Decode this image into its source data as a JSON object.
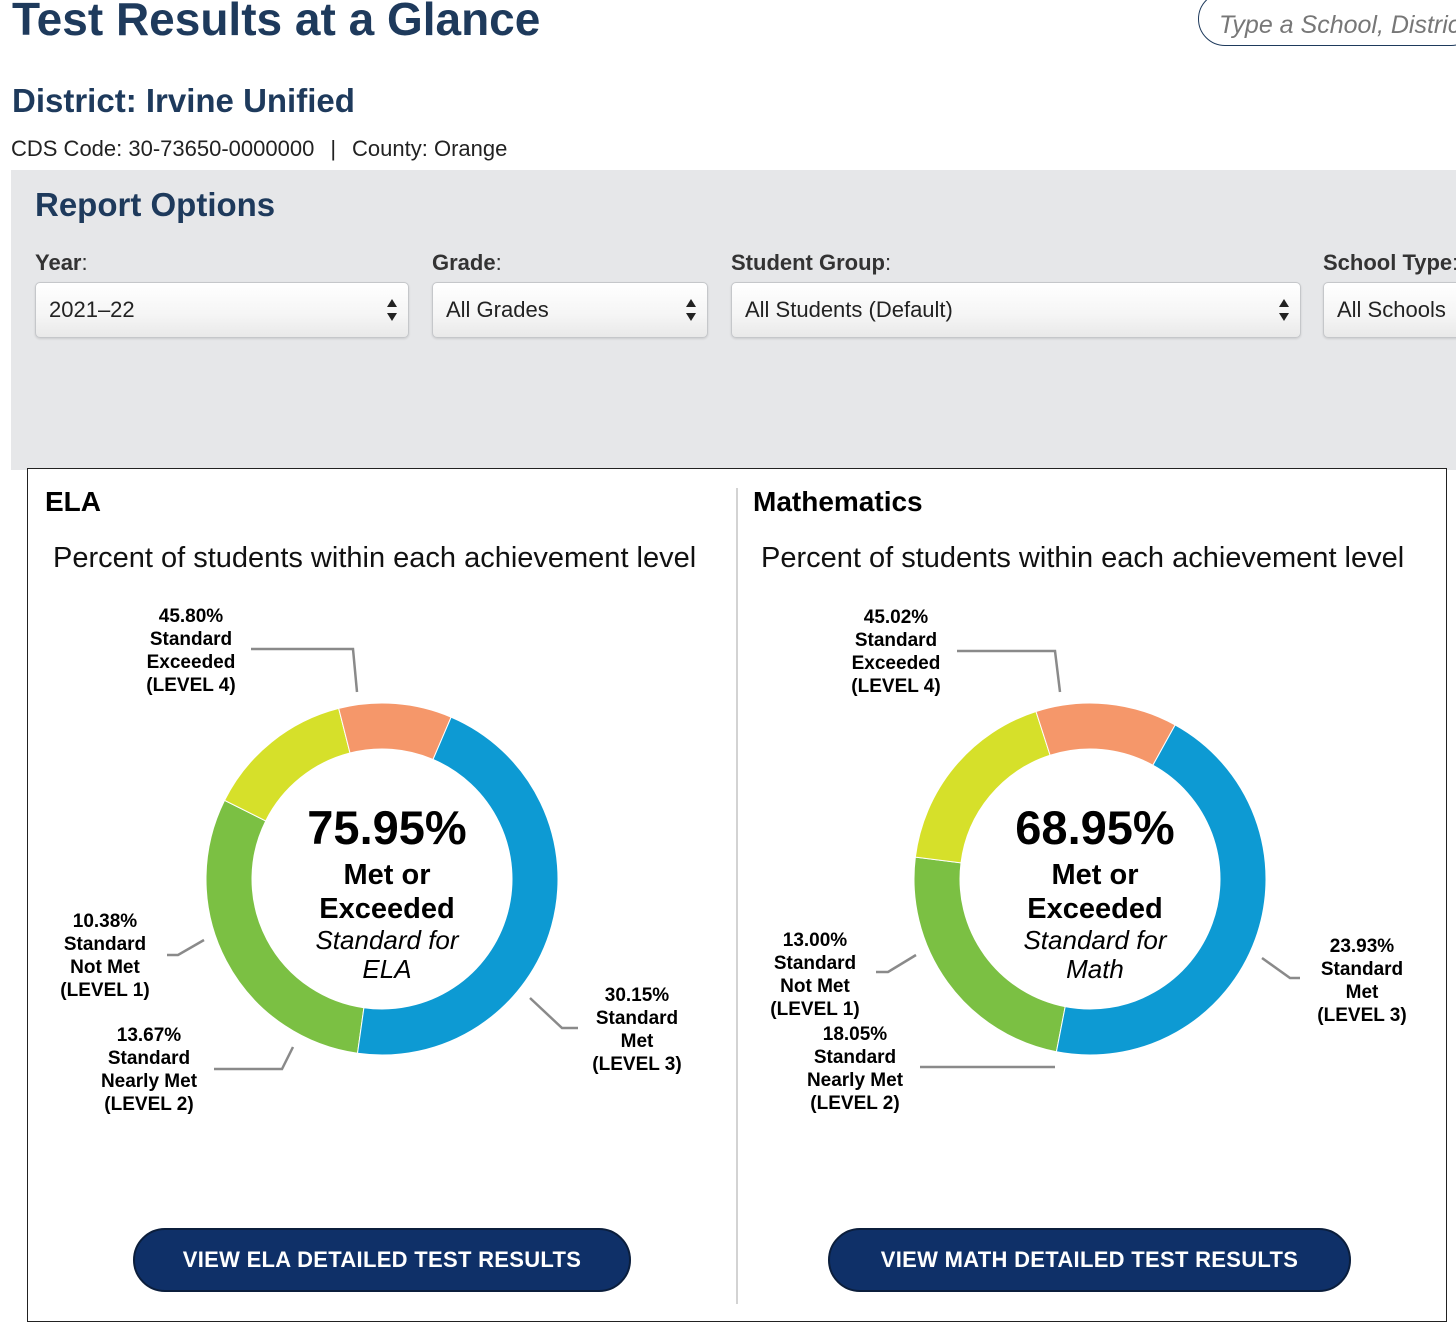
{
  "header": {
    "title": "Test Results at a Glance",
    "search_placeholder": "Type a School, District, or County"
  },
  "district": {
    "title": "District: Irvine Unified",
    "cds_code": "CDS Code: 30-73650-0000000",
    "separator": "|",
    "county": "County: Orange"
  },
  "report_options": {
    "title": "Report Options",
    "year": {
      "label": "Year",
      "value": "2021–22"
    },
    "grade": {
      "label": "Grade",
      "value": "All Grades"
    },
    "student_group": {
      "label": "Student Group",
      "value": "All Students (Default)"
    },
    "school_type": {
      "label": "School Type",
      "value": "All Schools"
    }
  },
  "ela": {
    "title": "ELA",
    "caption": "Percent of students within each achievement level",
    "center_pct": "75.95%",
    "center_met_1": "Met or",
    "center_met_2": "Exceeded",
    "center_std_1": "Standard for",
    "center_std_2": "ELA",
    "labels": {
      "l4": {
        "pct": "45.80%",
        "l1": "Standard",
        "l2": "Exceeded",
        "l3": "(LEVEL 4)"
      },
      "l3": {
        "pct": "30.15%",
        "l1": "Standard",
        "l2": "Met",
        "l3": "(LEVEL 3)"
      },
      "l2": {
        "pct": "13.67%",
        "l1": "Standard",
        "l2": "Nearly Met",
        "l3": "(LEVEL 2)"
      },
      "l1": {
        "pct": "10.38%",
        "l1": "Standard",
        "l2": "Not Met",
        "l3": "(LEVEL 1)"
      }
    },
    "button": "VIEW ELA DETAILED TEST RESULTS"
  },
  "math": {
    "title": "Mathematics",
    "caption": "Percent of students within each achievement level",
    "center_pct": "68.95%",
    "center_met_1": "Met or",
    "center_met_2": "Exceeded",
    "center_std_1": "Standard for",
    "center_std_2": "Math",
    "labels": {
      "l4": {
        "pct": "45.02%",
        "l1": "Standard",
        "l2": "Exceeded",
        "l3": "(LEVEL 4)"
      },
      "l3": {
        "pct": "23.93%",
        "l1": "Standard",
        "l2": "Met",
        "l3": "(LEVEL 3)"
      },
      "l2": {
        "pct": "18.05%",
        "l1": "Standard",
        "l2": "Nearly Met",
        "l3": "(LEVEL 2)"
      },
      "l1": {
        "pct": "13.00%",
        "l1": "Standard",
        "l2": "Not Met",
        "l3": "(LEVEL 1)"
      }
    },
    "button": "VIEW MATH DETAILED TEST RESULTS"
  },
  "colors": {
    "level4": "#0d9ad3",
    "level3": "#7bc043",
    "level2": "#d6e02a",
    "level1": "#f5976a",
    "brand": "#1e3a5c",
    "button": "#0f3068"
  },
  "chart_data": [
    {
      "type": "pie",
      "categories": [
        "Standard Exceeded (LEVEL 4)",
        "Standard Met (LEVEL 3)",
        "Standard Nearly Met (LEVEL 2)",
        "Standard Not Met (LEVEL 1)"
      ],
      "values": [
        45.8,
        30.15,
        13.67,
        10.38
      ],
      "title": "Percent of students within each achievement level"
    },
    {
      "type": "pie",
      "categories": [
        "Standard Exceeded (LEVEL 4)",
        "Standard Met (LEVEL 3)",
        "Standard Nearly Met (LEVEL 2)",
        "Standard Not Met (LEVEL 1)"
      ],
      "values": [
        45.02,
        23.93,
        18.05,
        13.0
      ],
      "title": "Percent of students within each achievement level"
    }
  ]
}
